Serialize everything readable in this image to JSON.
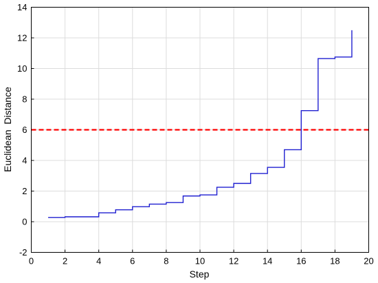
{
  "chart_data": {
    "type": "line",
    "title": "",
    "xlabel": "Step",
    "ylabel": "Euclidean  Distance",
    "xlim": [
      0,
      20
    ],
    "ylim": [
      -2,
      14
    ],
    "xticks": [
      0,
      2,
      4,
      6,
      8,
      10,
      12,
      14,
      16,
      18,
      20
    ],
    "yticks": [
      -2,
      0,
      2,
      4,
      6,
      8,
      10,
      12,
      14
    ],
    "grid": true,
    "legend": "none",
    "series": [
      {
        "style": "step-post",
        "color": "#1f1fd0",
        "x": [
          1,
          2,
          3,
          4,
          5,
          6,
          7,
          8,
          9,
          10,
          11,
          12,
          13,
          14,
          15,
          16,
          17,
          18,
          19
        ],
        "y": [
          0.28,
          0.32,
          0.32,
          0.58,
          0.78,
          0.98,
          1.15,
          1.25,
          1.68,
          1.75,
          2.25,
          2.5,
          3.15,
          3.55,
          4.7,
          7.25,
          10.65,
          10.75,
          12.5
        ]
      }
    ],
    "reference_line": {
      "y": 6,
      "color": "#ff0000",
      "style": "dashed"
    }
  }
}
